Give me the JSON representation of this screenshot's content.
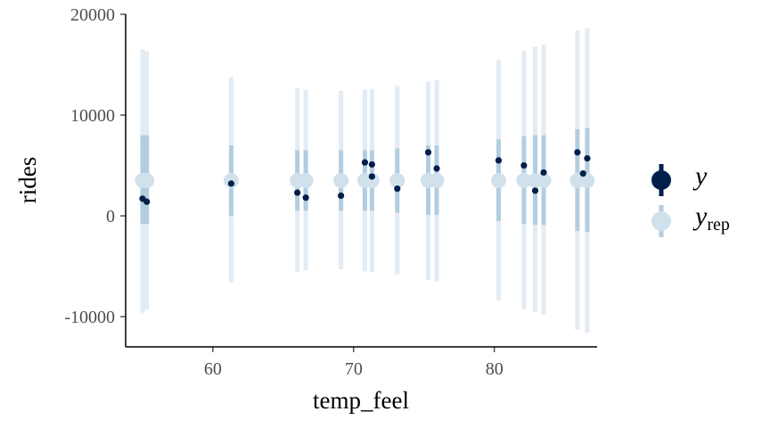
{
  "chart_data": {
    "type": "scatter",
    "title": "",
    "xlabel": "temp_feel",
    "ylabel": "rides",
    "xlim": [
      53.8,
      87.3
    ],
    "ylim": [
      -13000,
      20000
    ],
    "xticks": [
      60,
      70,
      80
    ],
    "xtick_labels": [
      "60",
      "70",
      "80"
    ],
    "yticks": [
      -10000,
      0,
      10000,
      20000
    ],
    "ytick_labels": [
      "-10000",
      "0",
      "10000",
      "20000"
    ],
    "legend": {
      "placement": "right",
      "entries": [
        {
          "label": "y",
          "subscript": ""
        },
        {
          "label": "y",
          "subscript": "rep"
        }
      ]
    },
    "colors": {
      "y": "#011f4b",
      "yrep_point": "#d1e1ec",
      "yrep_outer": "#e3ebf3",
      "yrep_inner": "#b3cde0",
      "axis": "#000000"
    },
    "yrep_intervals": {
      "description_fields": [
        "x",
        "median",
        "inner_low",
        "inner_high",
        "outer_low",
        "outer_high"
      ],
      "points": [
        {
          "x": 55.0,
          "median": 3500,
          "inner_low": -800,
          "inner_high": 8000,
          "outer_low": -9600,
          "outer_high": 16500
        },
        {
          "x": 55.3,
          "median": 3500,
          "inner_low": -800,
          "inner_high": 8000,
          "outer_low": -9300,
          "outer_high": 16300
        },
        {
          "x": 61.3,
          "median": 3500,
          "inner_low": 0,
          "inner_high": 7000,
          "outer_low": -6600,
          "outer_high": 13800
        },
        {
          "x": 66.0,
          "median": 3500,
          "inner_low": 500,
          "inner_high": 6500,
          "outer_low": -5600,
          "outer_high": 12700
        },
        {
          "x": 66.6,
          "median": 3500,
          "inner_low": 500,
          "inner_high": 6500,
          "outer_low": -5400,
          "outer_high": 12500
        },
        {
          "x": 69.1,
          "median": 3500,
          "inner_low": 500,
          "inner_high": 6500,
          "outer_low": -5300,
          "outer_high": 12400
        },
        {
          "x": 70.8,
          "median": 3500,
          "inner_low": 500,
          "inner_high": 6500,
          "outer_low": -5500,
          "outer_high": 12500
        },
        {
          "x": 71.3,
          "median": 3500,
          "inner_low": 500,
          "inner_high": 6500,
          "outer_low": -5600,
          "outer_high": 12600
        },
        {
          "x": 73.1,
          "median": 3500,
          "inner_low": 300,
          "inner_high": 6700,
          "outer_low": -5800,
          "outer_high": 12900
        },
        {
          "x": 75.3,
          "median": 3500,
          "inner_low": 100,
          "inner_high": 7000,
          "outer_low": -6400,
          "outer_high": 13300
        },
        {
          "x": 75.9,
          "median": 3500,
          "inner_low": 100,
          "inner_high": 7000,
          "outer_low": -6500,
          "outer_high": 13500
        },
        {
          "x": 80.3,
          "median": 3500,
          "inner_low": -500,
          "inner_high": 7600,
          "outer_low": -8400,
          "outer_high": 15500
        },
        {
          "x": 82.1,
          "median": 3500,
          "inner_low": -800,
          "inner_high": 7900,
          "outer_low": -9300,
          "outer_high": 16400
        },
        {
          "x": 82.9,
          "median": 3500,
          "inner_low": -900,
          "inner_high": 8000,
          "outer_low": -9500,
          "outer_high": 16800
        },
        {
          "x": 83.5,
          "median": 3500,
          "inner_low": -900,
          "inner_high": 8000,
          "outer_low": -9800,
          "outer_high": 17000
        },
        {
          "x": 85.9,
          "median": 3500,
          "inner_low": -1500,
          "inner_high": 8600,
          "outer_low": -11300,
          "outer_high": 18400
        },
        {
          "x": 86.6,
          "median": 3500,
          "inner_low": -1600,
          "inner_high": 8700,
          "outer_low": -11600,
          "outer_high": 18600
        }
      ]
    },
    "y_points": [
      {
        "x": 55.0,
        "y": 1700
      },
      {
        "x": 55.3,
        "y": 1400
      },
      {
        "x": 61.3,
        "y": 3200
      },
      {
        "x": 66.0,
        "y": 2300
      },
      {
        "x": 66.6,
        "y": 1800
      },
      {
        "x": 69.1,
        "y": 2000
      },
      {
        "x": 70.8,
        "y": 5300
      },
      {
        "x": 71.3,
        "y": 5100
      },
      {
        "x": 71.3,
        "y": 3900
      },
      {
        "x": 73.1,
        "y": 2700
      },
      {
        "x": 75.3,
        "y": 6300
      },
      {
        "x": 75.9,
        "y": 4700
      },
      {
        "x": 80.3,
        "y": 5500
      },
      {
        "x": 82.1,
        "y": 5000
      },
      {
        "x": 82.9,
        "y": 2500
      },
      {
        "x": 83.5,
        "y": 4300
      },
      {
        "x": 85.9,
        "y": 6300
      },
      {
        "x": 86.3,
        "y": 4200
      },
      {
        "x": 86.6,
        "y": 5700
      }
    ]
  }
}
